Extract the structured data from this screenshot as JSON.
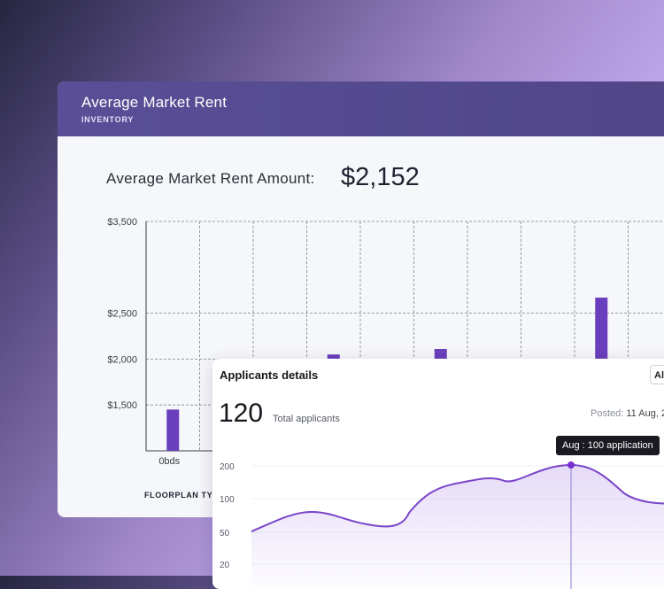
{
  "rent_card": {
    "title": "Average Market Rent",
    "subtitle": "INVENTORY",
    "amount_label": "Average Market Rent Amount:",
    "amount_value": "$2,152",
    "floorplan_label": "FLOORPLAN TYPE"
  },
  "applicants_card": {
    "title": "Applicants details",
    "filter_label": "All",
    "count": "120",
    "count_label": "Total applicants",
    "posted_label": "Posted:",
    "posted_value": "11 Aug, 2",
    "tooltip": "Aug : 100 application"
  },
  "chart_data": [
    {
      "type": "bar",
      "title": "",
      "xlabel": "FLOORPLAN TYPE",
      "ylabel": "",
      "ylim": [
        1000,
        3500
      ],
      "yticks": [
        1500,
        2000,
        2500,
        3500
      ],
      "ytick_labels": [
        "$1,500",
        "$2,000",
        "$2,500",
        "$3,500"
      ],
      "categories": [
        "0bds",
        "",
        "",
        "",
        "",
        "",
        "",
        "",
        "",
        ""
      ],
      "values": [
        1450,
        null,
        null,
        2050,
        null,
        2110,
        null,
        null,
        2670,
        null
      ],
      "grid": true,
      "color": "#6a3fbd"
    },
    {
      "type": "area",
      "title": "",
      "yticks": [
        20,
        50,
        100,
        200
      ],
      "ytick_labels": [
        "20",
        "50",
        "100",
        "200"
      ],
      "highlight": {
        "label": "Aug",
        "value": 100
      },
      "color": "#7a45c9"
    }
  ]
}
